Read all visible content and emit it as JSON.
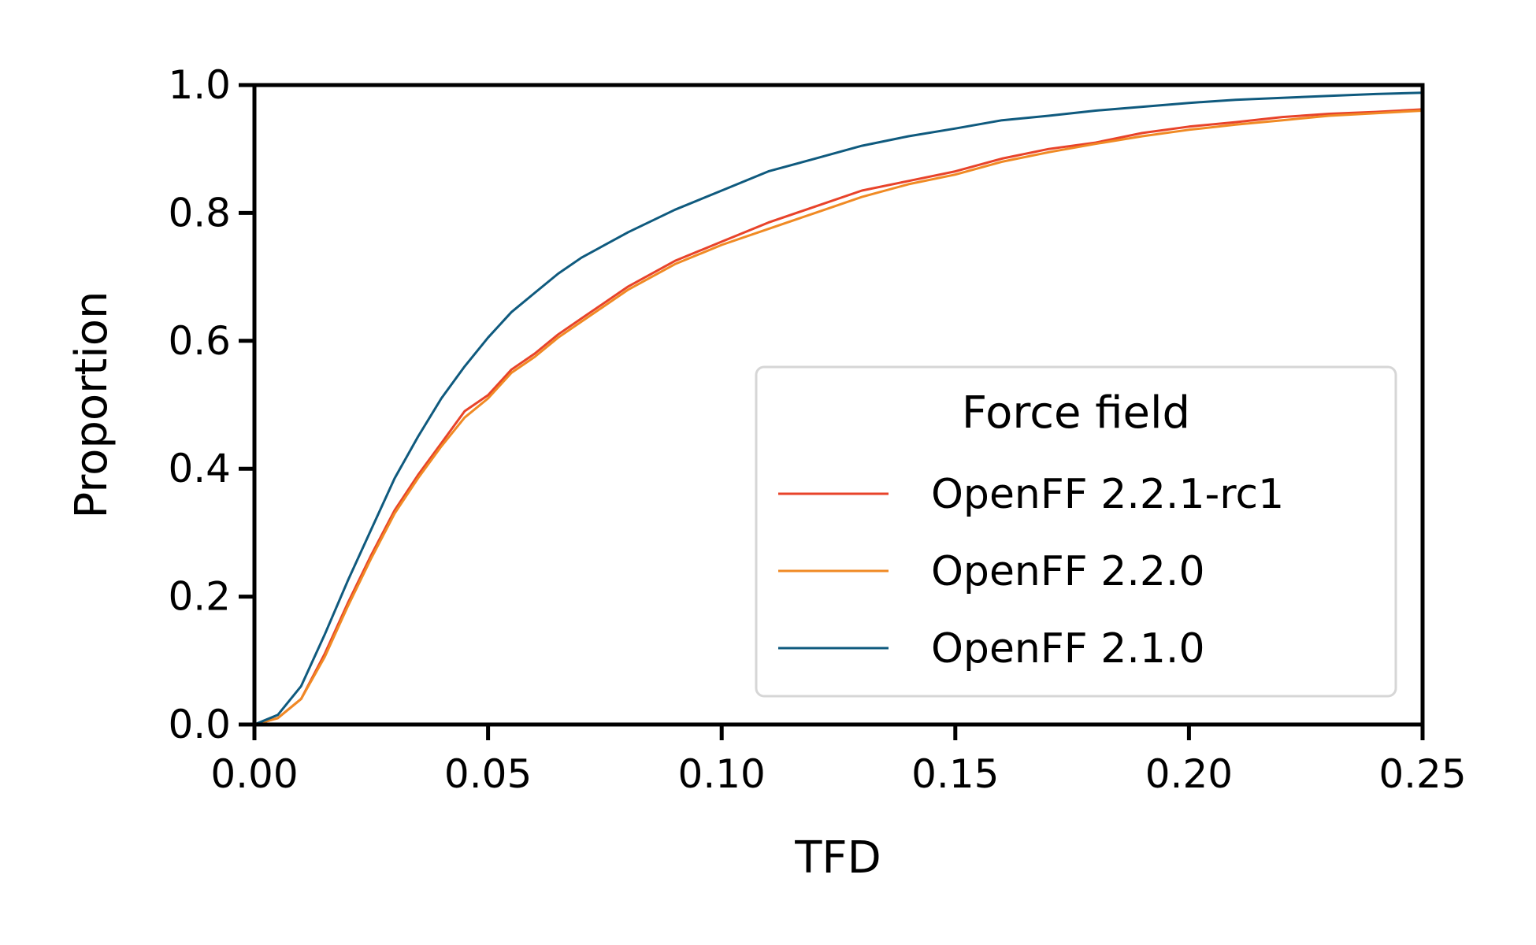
{
  "chart_data": {
    "type": "line",
    "xlabel": "TFD",
    "ylabel": "Proportion",
    "xlim": [
      0,
      0.25
    ],
    "ylim": [
      0,
      1.0
    ],
    "x_ticks": [
      "0.00",
      "0.05",
      "0.10",
      "0.15",
      "0.20",
      "0.25"
    ],
    "y_ticks": [
      "0.0",
      "0.2",
      "0.4",
      "0.6",
      "0.8",
      "1.0"
    ],
    "grid": false,
    "legend": {
      "title": "Force field",
      "placement": "lower-right"
    },
    "series": [
      {
        "name": "OpenFF 2.2.1-rc1",
        "color": "#e8432a",
        "x": [
          0,
          0.005,
          0.01,
          0.015,
          0.02,
          0.025,
          0.03,
          0.035,
          0.04,
          0.045,
          0.05,
          0.055,
          0.06,
          0.065,
          0.07,
          0.08,
          0.09,
          0.1,
          0.11,
          0.12,
          0.13,
          0.14,
          0.15,
          0.16,
          0.17,
          0.18,
          0.19,
          0.2,
          0.21,
          0.22,
          0.23,
          0.24,
          0.25
        ],
        "y": [
          0,
          0.01,
          0.04,
          0.11,
          0.19,
          0.265,
          0.335,
          0.39,
          0.44,
          0.49,
          0.515,
          0.555,
          0.58,
          0.61,
          0.635,
          0.685,
          0.725,
          0.755,
          0.785,
          0.81,
          0.835,
          0.85,
          0.865,
          0.885,
          0.9,
          0.91,
          0.925,
          0.935,
          0.942,
          0.95,
          0.955,
          0.958,
          0.962
        ]
      },
      {
        "name": "OpenFF 2.2.0",
        "color": "#f08a24",
        "x": [
          0,
          0.005,
          0.01,
          0.015,
          0.02,
          0.025,
          0.03,
          0.035,
          0.04,
          0.045,
          0.05,
          0.055,
          0.06,
          0.065,
          0.07,
          0.08,
          0.09,
          0.1,
          0.11,
          0.12,
          0.13,
          0.14,
          0.15,
          0.16,
          0.17,
          0.18,
          0.19,
          0.2,
          0.21,
          0.22,
          0.23,
          0.24,
          0.25
        ],
        "y": [
          0,
          0.01,
          0.04,
          0.105,
          0.185,
          0.26,
          0.33,
          0.385,
          0.435,
          0.48,
          0.51,
          0.55,
          0.575,
          0.605,
          0.63,
          0.68,
          0.72,
          0.75,
          0.775,
          0.8,
          0.825,
          0.845,
          0.86,
          0.88,
          0.895,
          0.908,
          0.92,
          0.93,
          0.938,
          0.945,
          0.952,
          0.956,
          0.96
        ]
      },
      {
        "name": "OpenFF 2.1.0",
        "color": "#0f5a7e",
        "x": [
          0,
          0.005,
          0.01,
          0.015,
          0.02,
          0.025,
          0.03,
          0.035,
          0.04,
          0.045,
          0.05,
          0.055,
          0.06,
          0.065,
          0.07,
          0.08,
          0.09,
          0.1,
          0.11,
          0.12,
          0.13,
          0.14,
          0.15,
          0.16,
          0.17,
          0.18,
          0.19,
          0.2,
          0.21,
          0.22,
          0.23,
          0.24,
          0.25
        ],
        "y": [
          0,
          0.015,
          0.06,
          0.14,
          0.225,
          0.305,
          0.385,
          0.45,
          0.51,
          0.56,
          0.605,
          0.645,
          0.675,
          0.705,
          0.73,
          0.77,
          0.805,
          0.835,
          0.865,
          0.885,
          0.905,
          0.92,
          0.932,
          0.945,
          0.952,
          0.96,
          0.966,
          0.972,
          0.977,
          0.98,
          0.983,
          0.986,
          0.988
        ]
      }
    ]
  }
}
